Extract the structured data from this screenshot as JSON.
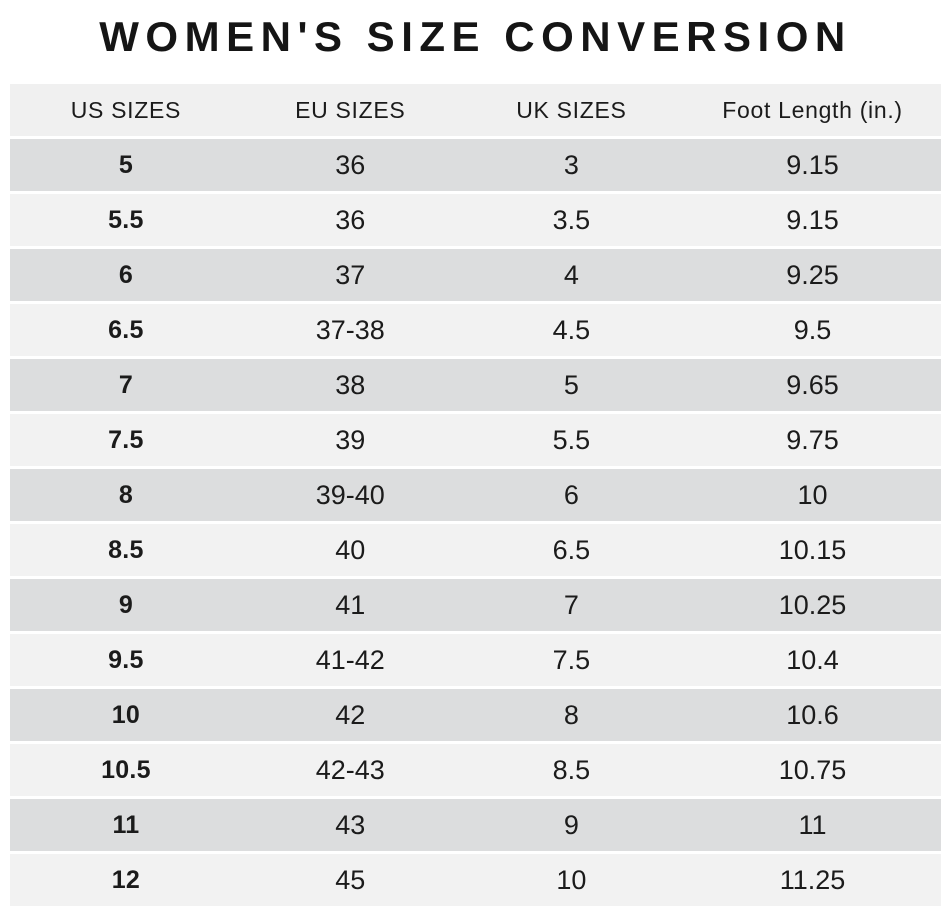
{
  "title": "WOMEN'S SIZE CONVERSION",
  "chart_data": {
    "type": "table",
    "title": "WOMEN'S SIZE CONVERSION",
    "headers": [
      "US SIZES",
      "EU SIZES",
      "UK SIZES",
      "Foot Length (in.)"
    ],
    "rows": [
      [
        "5",
        "36",
        "3",
        "9.15"
      ],
      [
        "5.5",
        "36",
        "3.5",
        "9.15"
      ],
      [
        "6",
        "37",
        "4",
        "9.25"
      ],
      [
        "6.5",
        "37-38",
        "4.5",
        "9.5"
      ],
      [
        "7",
        "38",
        "5",
        "9.65"
      ],
      [
        "7.5",
        "39",
        "5.5",
        "9.75"
      ],
      [
        "8",
        "39-40",
        "6",
        "10"
      ],
      [
        "8.5",
        "40",
        "6.5",
        "10.15"
      ],
      [
        "9",
        "41",
        "7",
        "10.25"
      ],
      [
        "9.5",
        "41-42",
        "7.5",
        "10.4"
      ],
      [
        "10",
        "42",
        "8",
        "10.6"
      ],
      [
        "10.5",
        "42-43",
        "8.5",
        "10.75"
      ],
      [
        "11",
        "43",
        "9",
        "11"
      ],
      [
        "12",
        "45",
        "10",
        "11.25"
      ]
    ],
    "layout": {
      "first_column_bold": true,
      "alternating_rows": "first data row dark",
      "column_width_pct": [
        24.9,
        23.3,
        24.2,
        27.6
      ]
    }
  },
  "colors": {
    "background": "#ffffff",
    "header_bg": "#f0f0f0",
    "row_dark": "#dcddde",
    "row_light": "#f2f2f2",
    "text": "#1b1b1b",
    "title_text": "#151515",
    "row_separator": "#ffffff"
  }
}
